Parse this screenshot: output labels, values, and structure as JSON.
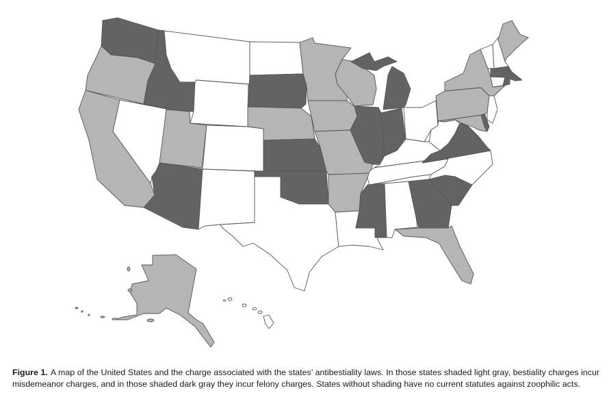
{
  "figure": {
    "label": "Figure 1.",
    "caption": "A map of the United States and the charge associated with the states’ antibestiality laws. In those states shaded light gray, bestiality charges incur misdemeanor charges, and in those shaded dark gray they incur felony charges. States without shading have no current statutes against zoophilic acts."
  },
  "legend_colors": {
    "felony": "#636363",
    "misdemeanor": "#b5b5b5",
    "none": "#ffffff"
  },
  "states": {
    "WA": "felony",
    "OR": "misdemeanor",
    "CA": "misdemeanor",
    "NV": "none",
    "ID": "felony",
    "MT": "none",
    "WY": "none",
    "UT": "misdemeanor",
    "CO": "none",
    "AZ": "felony",
    "NM": "none",
    "ND": "none",
    "SD": "felony",
    "NE": "misdemeanor",
    "KS": "felony",
    "OK": "felony",
    "TX": "none",
    "MN": "misdemeanor",
    "IA": "misdemeanor",
    "MO": "misdemeanor",
    "AR": "misdemeanor",
    "LA": "none",
    "WI": "misdemeanor",
    "IL": "felony",
    "MI_L": "felony",
    "MI_U": "felony",
    "IN": "felony",
    "OH": "none",
    "KY": "none",
    "TN": "none",
    "MS": "felony",
    "AL": "none",
    "GA": "felony",
    "FL": "misdemeanor",
    "SC": "felony",
    "NC": "none",
    "VA": "felony",
    "WV": "none",
    "MD": "misdemeanor",
    "DE": "felony",
    "PA": "misdemeanor",
    "NJ": "none",
    "NY": "misdemeanor",
    "CT": "none",
    "RI": "felony",
    "MA": "felony",
    "VT": "none",
    "NH": "none",
    "ME": "misdemeanor",
    "AK": "misdemeanor",
    "HI": "none"
  }
}
